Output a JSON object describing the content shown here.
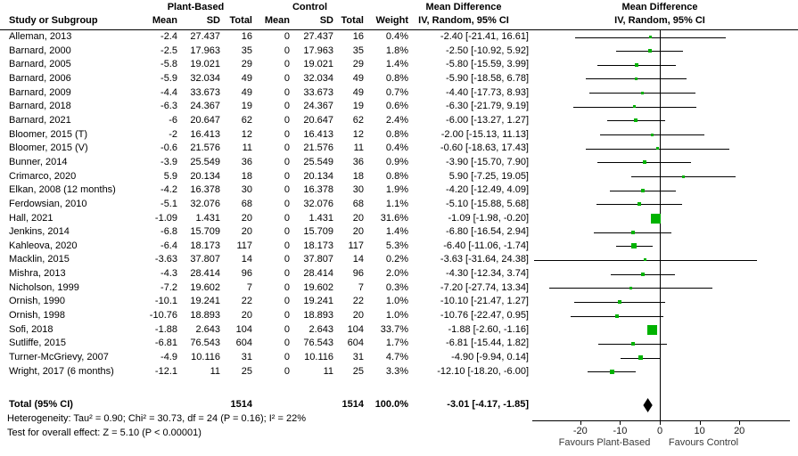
{
  "header": {
    "col_study": "Study or Subgroup",
    "group1": "Plant-Based",
    "group2": "Control",
    "col_mean": "Mean",
    "col_sd": "SD",
    "col_total": "Total",
    "col_weight": "Weight",
    "md_line1": "Mean Difference",
    "md_line2": "IV, Random, 95% CI"
  },
  "footnotes": {
    "heterogeneity": "Heterogeneity: Tau² = 0.90; Chi² = 30.73, df = 24 (P = 0.16); I² = 22%",
    "overall": "Test for overall effect: Z = 5.10 (P < 0.00001)"
  },
  "chart_data": {
    "type": "scatter",
    "variant": "forest_plot",
    "title": "Mean Difference",
    "method": "IV, Random, 95% CI",
    "x_ticks": [
      -20,
      -10,
      0,
      10,
      20
    ],
    "x_range": [
      -31.5,
      32.5
    ],
    "grid": false,
    "marker_color": "#00B200",
    "line_color": "#000000",
    "axis_labels": {
      "left": "Favours Plant-Based",
      "right": "Favours Control"
    },
    "studies": [
      {
        "name": "Alleman, 2013",
        "mean": "-2.4",
        "sd": "27.437",
        "total": "16",
        "c_mean": "0",
        "c_sd": "27.437",
        "c_total": "16",
        "weight": "0.4%",
        "w": 0.4,
        "est": -2.4,
        "lo": -21.41,
        "hi": 16.61,
        "ci": "-2.40 [-21.41, 16.61]"
      },
      {
        "name": "Barnard, 2000",
        "mean": "-2.5",
        "sd": "17.963",
        "total": "35",
        "c_mean": "0",
        "c_sd": "17.963",
        "c_total": "35",
        "weight": "1.8%",
        "w": 1.8,
        "est": -2.5,
        "lo": -10.92,
        "hi": 5.92,
        "ci": "-2.50 [-10.92, 5.92]"
      },
      {
        "name": "Barnard, 2005",
        "mean": "-5.8",
        "sd": "19.021",
        "total": "29",
        "c_mean": "0",
        "c_sd": "19.021",
        "c_total": "29",
        "weight": "1.4%",
        "w": 1.4,
        "est": -5.8,
        "lo": -15.59,
        "hi": 3.99,
        "ci": "-5.80 [-15.59, 3.99]"
      },
      {
        "name": "Barnard, 2006",
        "mean": "-5.9",
        "sd": "32.034",
        "total": "49",
        "c_mean": "0",
        "c_sd": "32.034",
        "c_total": "49",
        "weight": "0.8%",
        "w": 0.8,
        "est": -5.9,
        "lo": -18.58,
        "hi": 6.78,
        "ci": "-5.90 [-18.58, 6.78]"
      },
      {
        "name": "Barnard, 2009",
        "mean": "-4.4",
        "sd": "33.673",
        "total": "49",
        "c_mean": "0",
        "c_sd": "33.673",
        "c_total": "49",
        "weight": "0.7%",
        "w": 0.7,
        "est": -4.4,
        "lo": -17.73,
        "hi": 8.93,
        "ci": "-4.40 [-17.73, 8.93]"
      },
      {
        "name": "Barnard, 2018",
        "mean": "-6.3",
        "sd": "24.367",
        "total": "19",
        "c_mean": "0",
        "c_sd": "24.367",
        "c_total": "19",
        "weight": "0.6%",
        "w": 0.6,
        "est": -6.3,
        "lo": -21.79,
        "hi": 9.19,
        "ci": "-6.30 [-21.79, 9.19]"
      },
      {
        "name": "Barnard, 2021",
        "mean": "-6",
        "sd": "20.647",
        "total": "62",
        "c_mean": "0",
        "c_sd": "20.647",
        "c_total": "62",
        "weight": "2.4%",
        "w": 2.4,
        "est": -6.0,
        "lo": -13.27,
        "hi": 1.27,
        "ci": "-6.00 [-13.27, 1.27]"
      },
      {
        "name": "Bloomer, 2015 (T)",
        "mean": "-2",
        "sd": "16.413",
        "total": "12",
        "c_mean": "0",
        "c_sd": "16.413",
        "c_total": "12",
        "weight": "0.8%",
        "w": 0.8,
        "est": -2.0,
        "lo": -15.13,
        "hi": 11.13,
        "ci": "-2.00 [-15.13, 11.13]"
      },
      {
        "name": "Bloomer, 2015 (V)",
        "mean": "-0.6",
        "sd": "21.576",
        "total": "11",
        "c_mean": "0",
        "c_sd": "21.576",
        "c_total": "11",
        "weight": "0.4%",
        "w": 0.4,
        "est": -0.6,
        "lo": -18.63,
        "hi": 17.43,
        "ci": "-0.60 [-18.63, 17.43]"
      },
      {
        "name": "Bunner, 2014",
        "mean": "-3.9",
        "sd": "25.549",
        "total": "36",
        "c_mean": "0",
        "c_sd": "25.549",
        "c_total": "36",
        "weight": "0.9%",
        "w": 0.9,
        "est": -3.9,
        "lo": -15.7,
        "hi": 7.9,
        "ci": "-3.90 [-15.70, 7.90]"
      },
      {
        "name": "Crimarco, 2020",
        "mean": "5.9",
        "sd": "20.134",
        "total": "18",
        "c_mean": "0",
        "c_sd": "20.134",
        "c_total": "18",
        "weight": "0.8%",
        "w": 0.8,
        "est": 5.9,
        "lo": -7.25,
        "hi": 19.05,
        "ci": "5.90 [-7.25, 19.05]"
      },
      {
        "name": "Elkan, 2008 (12 months)",
        "mean": "-4.2",
        "sd": "16.378",
        "total": "30",
        "c_mean": "0",
        "c_sd": "16.378",
        "c_total": "30",
        "weight": "1.9%",
        "w": 1.9,
        "est": -4.2,
        "lo": -12.49,
        "hi": 4.09,
        "ci": "-4.20 [-12.49, 4.09]"
      },
      {
        "name": "Ferdowsian, 2010",
        "mean": "-5.1",
        "sd": "32.076",
        "total": "68",
        "c_mean": "0",
        "c_sd": "32.076",
        "c_total": "68",
        "weight": "1.1%",
        "w": 1.1,
        "est": -5.1,
        "lo": -15.88,
        "hi": 5.68,
        "ci": "-5.10 [-15.88, 5.68]"
      },
      {
        "name": "Hall, 2021",
        "mean": "-1.09",
        "sd": "1.431",
        "total": "20",
        "c_mean": "0",
        "c_sd": "1.431",
        "c_total": "20",
        "weight": "31.6%",
        "w": 31.6,
        "est": -1.09,
        "lo": -1.98,
        "hi": -0.2,
        "ci": "-1.09 [-1.98, -0.20]"
      },
      {
        "name": "Jenkins, 2014",
        "mean": "-6.8",
        "sd": "15.709",
        "total": "20",
        "c_mean": "0",
        "c_sd": "15.709",
        "c_total": "20",
        "weight": "1.4%",
        "w": 1.4,
        "est": -6.8,
        "lo": -16.54,
        "hi": 2.94,
        "ci": "-6.80 [-16.54, 2.94]"
      },
      {
        "name": "Kahleova, 2020",
        "mean": "-6.4",
        "sd": "18.173",
        "total": "117",
        "c_mean": "0",
        "c_sd": "18.173",
        "c_total": "117",
        "weight": "5.3%",
        "w": 5.3,
        "est": -6.4,
        "lo": -11.06,
        "hi": -1.74,
        "ci": "-6.40 [-11.06, -1.74]"
      },
      {
        "name": "Macklin, 2015",
        "mean": "-3.63",
        "sd": "37.807",
        "total": "14",
        "c_mean": "0",
        "c_sd": "37.807",
        "c_total": "14",
        "weight": "0.2%",
        "w": 0.2,
        "est": -3.63,
        "lo": -31.64,
        "hi": 24.38,
        "ci": "-3.63 [-31.64, 24.38]"
      },
      {
        "name": "Mishra, 2013",
        "mean": "-4.3",
        "sd": "28.414",
        "total": "96",
        "c_mean": "0",
        "c_sd": "28.414",
        "c_total": "96",
        "weight": "2.0%",
        "w": 2.0,
        "est": -4.3,
        "lo": -12.34,
        "hi": 3.74,
        "ci": "-4.30 [-12.34, 3.74]"
      },
      {
        "name": "Nicholson, 1999",
        "mean": "-7.2",
        "sd": "19.602",
        "total": "7",
        "c_mean": "0",
        "c_sd": "19.602",
        "c_total": "7",
        "weight": "0.3%",
        "w": 0.3,
        "est": -7.2,
        "lo": -27.74,
        "hi": 13.34,
        "ci": "-7.20 [-27.74, 13.34]"
      },
      {
        "name": "Ornish, 1990",
        "mean": "-10.1",
        "sd": "19.241",
        "total": "22",
        "c_mean": "0",
        "c_sd": "19.241",
        "c_total": "22",
        "weight": "1.0%",
        "w": 1.0,
        "est": -10.1,
        "lo": -21.47,
        "hi": 1.27,
        "ci": "-10.10 [-21.47, 1.27]"
      },
      {
        "name": "Ornish, 1998",
        "mean": "-10.76",
        "sd": "18.893",
        "total": "20",
        "c_mean": "0",
        "c_sd": "18.893",
        "c_total": "20",
        "weight": "1.0%",
        "w": 1.0,
        "est": -10.76,
        "lo": -22.47,
        "hi": 0.95,
        "ci": "-10.76 [-22.47, 0.95]"
      },
      {
        "name": "Sofi, 2018",
        "mean": "-1.88",
        "sd": "2.643",
        "total": "104",
        "c_mean": "0",
        "c_sd": "2.643",
        "c_total": "104",
        "weight": "33.7%",
        "w": 33.7,
        "est": -1.88,
        "lo": -2.6,
        "hi": -1.16,
        "ci": "-1.88 [-2.60, -1.16]"
      },
      {
        "name": "Sutliffe, 2015",
        "mean": "-6.81",
        "sd": "76.543",
        "total": "604",
        "c_mean": "0",
        "c_sd": "76.543",
        "c_total": "604",
        "weight": "1.7%",
        "w": 1.7,
        "est": -6.81,
        "lo": -15.44,
        "hi": 1.82,
        "ci": "-6.81 [-15.44, 1.82]"
      },
      {
        "name": "Turner-McGrievy, 2007",
        "mean": "-4.9",
        "sd": "10.116",
        "total": "31",
        "c_mean": "0",
        "c_sd": "10.116",
        "c_total": "31",
        "weight": "4.7%",
        "w": 4.7,
        "est": -4.9,
        "lo": -9.94,
        "hi": 0.14,
        "ci": "-4.90 [-9.94, 0.14]"
      },
      {
        "name": "Wright, 2017 (6 months)",
        "mean": "-12.1",
        "sd": "11",
        "total": "25",
        "c_mean": "0",
        "c_sd": "11",
        "c_total": "25",
        "weight": "3.3%",
        "w": 3.3,
        "est": -12.1,
        "lo": -18.2,
        "hi": -6.0,
        "ci": "-12.10 [-18.20, -6.00]"
      }
    ],
    "total": {
      "label": "Total (95% CI)",
      "total": "1514",
      "c_total": "1514",
      "weight": "100.0%",
      "est": -3.01,
      "lo": -4.17,
      "hi": -1.85,
      "ci": "-3.01 [-4.17, -1.85]"
    }
  }
}
